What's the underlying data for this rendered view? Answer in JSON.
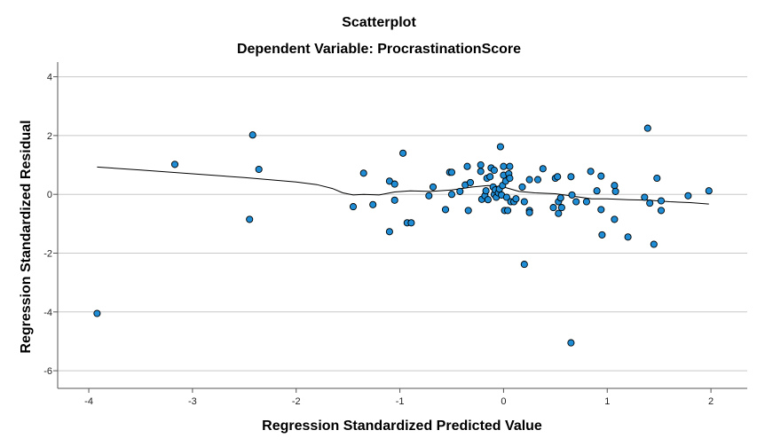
{
  "chart_data": {
    "type": "scatter",
    "title": "Scatterplot",
    "subtitle": "Dependent Variable: ProcrastinationScore",
    "xlabel": "Regression Standardized Predicted Value",
    "ylabel": "Regression Standardized Residual",
    "xlim": [
      -4.3,
      2.35
    ],
    "ylim": [
      -6.6,
      4.5
    ],
    "x_ticks": [
      -4,
      -3,
      -2,
      -1,
      0,
      1,
      2
    ],
    "y_ticks": [
      4,
      2,
      0,
      -2,
      -4,
      -6
    ],
    "grid": {
      "horizontal": true,
      "vertical": false
    },
    "colors": {
      "point_fill": "#1f8dd6",
      "point_stroke": "#000000",
      "fit_line": "#000000",
      "grid": "#c8c8c8",
      "axis": "#555555"
    },
    "points": [
      [
        -3.92,
        -4.05
      ],
      [
        -3.17,
        1.02
      ],
      [
        -2.45,
        -0.85
      ],
      [
        -2.42,
        2.02
      ],
      [
        -2.36,
        0.85
      ],
      [
        -1.45,
        -0.42
      ],
      [
        -1.35,
        0.72
      ],
      [
        -1.26,
        -0.35
      ],
      [
        -1.1,
        -1.27
      ],
      [
        -1.1,
        0.45
      ],
      [
        -1.05,
        0.35
      ],
      [
        -1.05,
        -0.2
      ],
      [
        -0.97,
        1.4
      ],
      [
        -0.93,
        -0.97
      ],
      [
        -0.89,
        -0.97
      ],
      [
        -0.72,
        -0.05
      ],
      [
        -0.68,
        0.25
      ],
      [
        -0.56,
        -0.52
      ],
      [
        -0.52,
        0.75
      ],
      [
        -0.5,
        0.75
      ],
      [
        -0.5,
        0.0
      ],
      [
        -0.42,
        0.1
      ],
      [
        -0.37,
        0.32
      ],
      [
        -0.35,
        0.95
      ],
      [
        -0.34,
        -0.55
      ],
      [
        -0.32,
        0.4
      ],
      [
        -0.22,
        0.78
      ],
      [
        -0.22,
        1.0
      ],
      [
        -0.21,
        -0.17
      ],
      [
        -0.18,
        -0.05
      ],
      [
        -0.17,
        0.12
      ],
      [
        -0.16,
        0.55
      ],
      [
        -0.15,
        -0.18
      ],
      [
        -0.13,
        0.6
      ],
      [
        -0.12,
        0.9
      ],
      [
        -0.1,
        0.25
      ],
      [
        -0.09,
        0.82
      ],
      [
        -0.09,
        0.0
      ],
      [
        -0.08,
        0.15
      ],
      [
        -0.07,
        -0.1
      ],
      [
        -0.05,
        0.05
      ],
      [
        -0.04,
        0.18
      ],
      [
        -0.03,
        1.62
      ],
      [
        -0.02,
        -0.02
      ],
      [
        -0.01,
        0.3
      ],
      [
        0.0,
        0.65
      ],
      [
        0.0,
        0.95
      ],
      [
        0.01,
        -0.55
      ],
      [
        0.02,
        0.45
      ],
      [
        0.03,
        -0.1
      ],
      [
        0.04,
        -0.55
      ],
      [
        0.05,
        0.7
      ],
      [
        0.06,
        0.55
      ],
      [
        0.06,
        0.95
      ],
      [
        0.07,
        -0.25
      ],
      [
        0.1,
        -0.25
      ],
      [
        0.12,
        -0.15
      ],
      [
        0.18,
        0.25
      ],
      [
        0.2,
        -0.25
      ],
      [
        0.2,
        -2.38
      ],
      [
        0.25,
        0.5
      ],
      [
        0.25,
        -0.55
      ],
      [
        0.25,
        -0.62
      ],
      [
        0.33,
        0.5
      ],
      [
        0.38,
        0.87
      ],
      [
        0.48,
        -0.45
      ],
      [
        0.5,
        0.55
      ],
      [
        0.52,
        0.6
      ],
      [
        0.53,
        -0.25
      ],
      [
        0.53,
        -0.65
      ],
      [
        0.55,
        -0.12
      ],
      [
        0.56,
        -0.45
      ],
      [
        0.65,
        -5.05
      ],
      [
        0.65,
        0.6
      ],
      [
        0.66,
        -0.02
      ],
      [
        0.7,
        -0.25
      ],
      [
        0.8,
        -0.25
      ],
      [
        0.84,
        0.78
      ],
      [
        0.9,
        0.12
      ],
      [
        0.94,
        0.62
      ],
      [
        0.94,
        -0.52
      ],
      [
        0.95,
        -1.38
      ],
      [
        1.07,
        -0.85
      ],
      [
        1.07,
        0.3
      ],
      [
        1.08,
        0.1
      ],
      [
        1.2,
        -1.45
      ],
      [
        1.36,
        -0.1
      ],
      [
        1.39,
        2.25
      ],
      [
        1.41,
        -0.3
      ],
      [
        1.45,
        -1.7
      ],
      [
        1.48,
        0.55
      ],
      [
        1.52,
        -0.22
      ],
      [
        1.52,
        -0.55
      ],
      [
        1.78,
        -0.05
      ],
      [
        1.98,
        0.12
      ]
    ],
    "fit_line": [
      [
        -3.92,
        0.93
      ],
      [
        -3.5,
        0.83
      ],
      [
        -3.0,
        0.7
      ],
      [
        -2.5,
        0.57
      ],
      [
        -2.0,
        0.42
      ],
      [
        -1.8,
        0.33
      ],
      [
        -1.65,
        0.2
      ],
      [
        -1.55,
        0.05
      ],
      [
        -1.45,
        -0.02
      ],
      [
        -1.35,
        0.0
      ],
      [
        -1.2,
        -0.02
      ],
      [
        -1.05,
        0.08
      ],
      [
        -0.9,
        0.12
      ],
      [
        -0.7,
        0.1
      ],
      [
        -0.5,
        0.15
      ],
      [
        -0.3,
        0.25
      ],
      [
        -0.15,
        0.3
      ],
      [
        0.0,
        0.25
      ],
      [
        0.15,
        0.1
      ],
      [
        0.3,
        0.05
      ],
      [
        0.5,
        0.02
      ],
      [
        0.7,
        -0.08
      ],
      [
        0.85,
        -0.15
      ],
      [
        1.0,
        -0.15
      ],
      [
        1.2,
        -0.18
      ],
      [
        1.4,
        -0.2
      ],
      [
        1.6,
        -0.25
      ],
      [
        1.8,
        -0.28
      ],
      [
        1.98,
        -0.33
      ]
    ]
  }
}
